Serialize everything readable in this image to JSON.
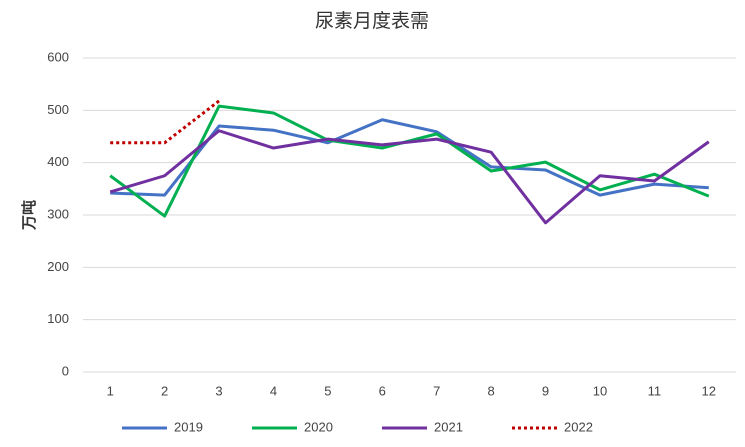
{
  "chart_data": {
    "type": "line",
    "title": "尿素月度表需",
    "y_label": "万吨",
    "categories": [
      "1",
      "2",
      "3",
      "4",
      "5",
      "6",
      "7",
      "8",
      "9",
      "10",
      "11",
      "12"
    ],
    "series": [
      {
        "name": "2019",
        "color": "#4472c4",
        "values": [
          342,
          338,
          470,
          462,
          438,
          482,
          459,
          392,
          386,
          338,
          359,
          352
        ]
      },
      {
        "name": "2020",
        "color": "#00b050",
        "values": [
          375,
          298,
          508,
          495,
          443,
          428,
          455,
          384,
          401,
          348,
          378,
          336
        ]
      },
      {
        "name": "2021",
        "color": "#7030a0",
        "values": [
          344,
          375,
          461,
          428,
          445,
          434,
          445,
          420,
          285,
          375,
          365,
          440
        ]
      },
      {
        "name": "2022",
        "color": "#c00000",
        "style": "dotted",
        "values": [
          438,
          438,
          518,
          null,
          null,
          null,
          null,
          null,
          null,
          null,
          null,
          null
        ]
      }
    ],
    "ylim": [
      0,
      600
    ],
    "yticks": [
      0,
      100,
      200,
      300,
      400,
      500,
      600
    ],
    "grid": true,
    "legend": "bottom"
  }
}
